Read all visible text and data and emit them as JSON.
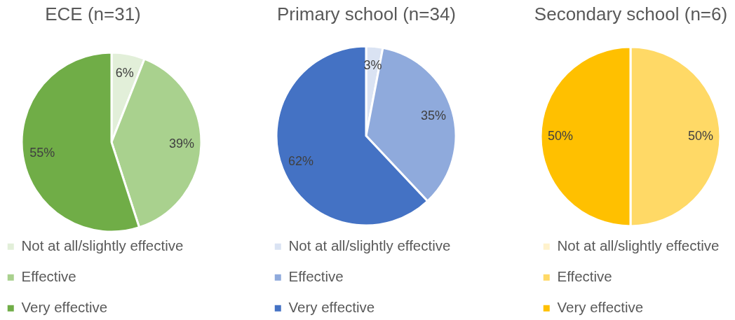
{
  "chart_data": [
    {
      "type": "pie",
      "title": "ECE (n=31)",
      "categories": [
        "Not at all/slightly effective",
        "Effective",
        "Very effective"
      ],
      "values": [
        6,
        39,
        55
      ],
      "colors": [
        "#e2efd9",
        "#a9d18e",
        "#70ad47"
      ],
      "value_labels": [
        "6%",
        "39%",
        "55%"
      ],
      "legend": "bottom"
    },
    {
      "type": "pie",
      "title": "Primary school (n=34)",
      "categories": [
        "Not at all/slightly effective",
        "Effective",
        "Very effective"
      ],
      "values": [
        3,
        35,
        62
      ],
      "colors": [
        "#dae3f3",
        "#8faadc",
        "#4472c4"
      ],
      "value_labels": [
        "3%",
        "35%",
        "62%"
      ],
      "legend": "bottom"
    },
    {
      "type": "pie",
      "title": "Secondary school (n=6)",
      "categories": [
        "Not at all/slightly effective",
        "Effective",
        "Very effective"
      ],
      "values": [
        0,
        50,
        50
      ],
      "colors": [
        "#fff2cc",
        "#ffd966",
        "#ffc000"
      ],
      "value_labels": [
        null,
        "50%",
        "50%"
      ],
      "legend": "bottom"
    }
  ]
}
